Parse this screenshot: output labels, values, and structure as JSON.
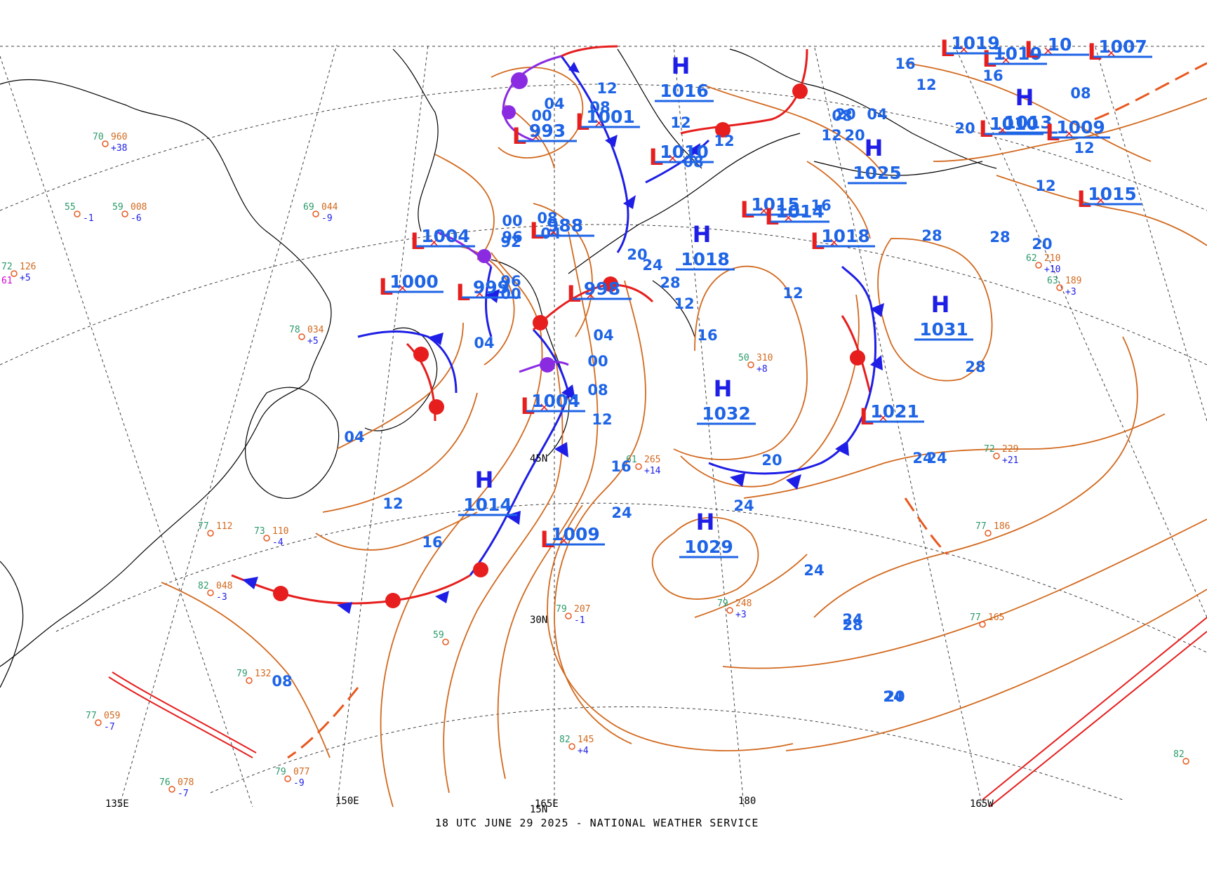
{
  "chart": {
    "footer": "18 UTC JUNE 29 2025 - NATIONAL WEATHER SERVICE",
    "colors": {
      "isobar": "#d2691e",
      "high": "#1e1ee6",
      "low": "#e61e1e",
      "label": "#1e64e6",
      "warm_front": "#e61e1e",
      "cold_front": "#1e1ee6",
      "occluded": "#8a2be2",
      "coast": "#000000",
      "grid": "#000000",
      "station_temp": "#d100d1",
      "station_dew": "#1a9a1a"
    },
    "grid_labels": [
      {
        "id": "135e",
        "text": "135E"
      },
      {
        "id": "150e",
        "text": "150E"
      },
      {
        "id": "165e",
        "text": "165E"
      },
      {
        "id": "180",
        "text": "180"
      },
      {
        "id": "165w",
        "text": "165W"
      },
      {
        "id": "30n",
        "text": "30N"
      },
      {
        "id": "45n",
        "text": "45N"
      },
      {
        "id": "15n",
        "text": "15N"
      }
    ],
    "centers": [
      {
        "id": "h1025",
        "type": "H",
        "pressure": "1025"
      },
      {
        "id": "h1031",
        "type": "H",
        "pressure": "1031"
      },
      {
        "id": "h1032",
        "type": "H",
        "pressure": "1032"
      },
      {
        "id": "h1029",
        "type": "H",
        "pressure": "1029"
      },
      {
        "id": "h1014",
        "type": "H",
        "pressure": "1014"
      },
      {
        "id": "h1016",
        "type": "H",
        "pressure": "1016"
      },
      {
        "id": "h1018a",
        "type": "H",
        "pressure": "1018"
      },
      {
        "id": "h1013",
        "type": "H",
        "pressure": "1013"
      },
      {
        "id": "l993",
        "type": "L",
        "pressure": "993"
      },
      {
        "id": "l1001",
        "type": "L",
        "pressure": "1001"
      },
      {
        "id": "l988",
        "type": "L",
        "pressure": "988"
      },
      {
        "id": "l1004a",
        "type": "L",
        "pressure": "1004"
      },
      {
        "id": "l1000",
        "type": "L",
        "pressure": "1000"
      },
      {
        "id": "l999",
        "type": "L",
        "pressure": "999"
      },
      {
        "id": "l998",
        "type": "L",
        "pressure": "998"
      },
      {
        "id": "l1004b",
        "type": "L",
        "pressure": "1004"
      },
      {
        "id": "l1009",
        "type": "L",
        "pressure": "1009"
      },
      {
        "id": "l1010a",
        "type": "L",
        "pressure": "1010"
      },
      {
        "id": "l1015a",
        "type": "L",
        "pressure": "1015"
      },
      {
        "id": "l1014",
        "type": "L",
        "pressure": "1014"
      },
      {
        "id": "l1018b",
        "type": "L",
        "pressure": "1018"
      },
      {
        "id": "l1021",
        "type": "L",
        "pressure": "1021"
      },
      {
        "id": "l1010b",
        "type": "L",
        "pressure": "1010"
      },
      {
        "id": "l1010c",
        "type": "L",
        "pressure": "1010"
      },
      {
        "id": "l1009b",
        "type": "L",
        "pressure": "1009"
      },
      {
        "id": "l1007",
        "type": "L",
        "pressure": "1007"
      },
      {
        "id": "l1015b",
        "type": "L",
        "pressure": "1015"
      },
      {
        "id": "l1019",
        "type": "L",
        "pressure": "1019"
      },
      {
        "id": "l10",
        "type": "L",
        "pressure": "10"
      }
    ],
    "isobar_labels": [
      {
        "id": "i1",
        "text": "12"
      },
      {
        "id": "i2",
        "text": "08"
      },
      {
        "id": "i3",
        "text": "04"
      },
      {
        "id": "i4",
        "text": "00"
      },
      {
        "id": "i5",
        "text": "12"
      },
      {
        "id": "i6",
        "text": "08"
      },
      {
        "id": "i7",
        "text": "04"
      },
      {
        "id": "i8",
        "text": "00"
      },
      {
        "id": "i9",
        "text": "96"
      },
      {
        "id": "i10",
        "text": "92"
      },
      {
        "id": "i11",
        "text": "96"
      },
      {
        "id": "i12",
        "text": "00"
      },
      {
        "id": "i13",
        "text": "04"
      },
      {
        "id": "i14",
        "text": "04"
      },
      {
        "id": "i15",
        "text": "00"
      },
      {
        "id": "i16",
        "text": "08"
      },
      {
        "id": "i17",
        "text": "12"
      },
      {
        "id": "i18",
        "text": "16"
      },
      {
        "id": "i19",
        "text": "20"
      },
      {
        "id": "i20",
        "text": "24"
      },
      {
        "id": "i21",
        "text": "28"
      },
      {
        "id": "i22",
        "text": "12"
      },
      {
        "id": "i23",
        "text": "16"
      },
      {
        "id": "i24",
        "text": "20"
      },
      {
        "id": "i25",
        "text": "24"
      },
      {
        "id": "i26",
        "text": "28"
      },
      {
        "id": "i27",
        "text": "28"
      },
      {
        "id": "i28",
        "text": "28"
      },
      {
        "id": "i29",
        "text": "24"
      },
      {
        "id": "i30",
        "text": "24"
      },
      {
        "id": "i31",
        "text": "20"
      },
      {
        "id": "i32",
        "text": "20"
      },
      {
        "id": "i33",
        "text": "24"
      },
      {
        "id": "i34",
        "text": "28"
      },
      {
        "id": "i35",
        "text": "24"
      },
      {
        "id": "i36",
        "text": "20"
      },
      {
        "id": "i37",
        "text": "16"
      },
      {
        "id": "i38",
        "text": "12"
      },
      {
        "id": "i39",
        "text": "16"
      },
      {
        "id": "i40",
        "text": "12"
      },
      {
        "id": "i41",
        "text": "20"
      },
      {
        "id": "i42",
        "text": "12"
      },
      {
        "id": "i43",
        "text": "08"
      },
      {
        "id": "i44",
        "text": "04"
      },
      {
        "id": "i45",
        "text": "08"
      },
      {
        "id": "i46",
        "text": "12"
      },
      {
        "id": "i47",
        "text": "12"
      },
      {
        "id": "i48",
        "text": "08"
      },
      {
        "id": "i49",
        "text": "12"
      },
      {
        "id": "i50",
        "text": "16"
      },
      {
        "id": "i51",
        "text": "20"
      },
      {
        "id": "i52",
        "text": "24"
      },
      {
        "id": "i53",
        "text": "12"
      },
      {
        "id": "i54",
        "text": "16"
      },
      {
        "id": "i55",
        "text": "04"
      },
      {
        "id": "i56",
        "text": "08"
      },
      {
        "id": "i57",
        "text": "24"
      }
    ],
    "stations": [
      {
        "id": "s1",
        "temp": "72",
        "dew": "61",
        "pres": "126",
        "tend": "+5"
      },
      {
        "id": "s2",
        "temp": "70",
        "dew": "",
        "pres": "960",
        "tend": "+38"
      },
      {
        "id": "s3",
        "temp": "55",
        "dew": "",
        "pres": "",
        "tend": "-1"
      },
      {
        "id": "s4",
        "temp": "59",
        "dew": "",
        "pres": "008",
        "tend": "-6"
      },
      {
        "id": "s5",
        "temp": "69",
        "dew": "",
        "pres": "044",
        "tend": "-9"
      },
      {
        "id": "s6",
        "temp": "78",
        "dew": "",
        "pres": "034",
        "tend": "+5"
      },
      {
        "id": "s7",
        "temp": "82",
        "dew": "",
        "pres": "048",
        "tend": "-3"
      },
      {
        "id": "s8",
        "temp": "79",
        "dew": "",
        "pres": "132",
        "tend": ""
      },
      {
        "id": "s9",
        "temp": "77",
        "dew": "",
        "pres": "059",
        "tend": "-7"
      },
      {
        "id": "s10",
        "temp": "79",
        "dew": "",
        "pres": "077",
        "tend": "-9"
      },
      {
        "id": "s11",
        "temp": "76",
        "dew": "",
        "pres": "078",
        "tend": "-7"
      },
      {
        "id": "s12",
        "temp": "82",
        "dew": "",
        "pres": "145",
        "tend": "+4"
      },
      {
        "id": "s13",
        "temp": "79",
        "dew": "",
        "pres": "207",
        "tend": "-1"
      },
      {
        "id": "s14",
        "temp": "79",
        "dew": "",
        "pres": "248",
        "tend": "+3"
      },
      {
        "id": "s15",
        "temp": "77",
        "dew": "",
        "pres": "165",
        "tend": ""
      },
      {
        "id": "s16",
        "temp": "77",
        "dew": "",
        "pres": "186",
        "tend": ""
      },
      {
        "id": "s17",
        "temp": "72",
        "dew": "",
        "pres": "229",
        "tend": "+21"
      },
      {
        "id": "s18",
        "temp": "63",
        "dew": "",
        "pres": "189",
        "tend": "+3"
      },
      {
        "id": "s19",
        "temp": "62",
        "dew": "",
        "pres": "210",
        "tend": "+10"
      },
      {
        "id": "s20",
        "temp": "50",
        "dew": "",
        "pres": "310",
        "tend": "+8"
      },
      {
        "id": "s21",
        "temp": "61",
        "dew": "",
        "pres": "265",
        "tend": "+14"
      },
      {
        "id": "s22",
        "temp": "73",
        "dew": "",
        "pres": "110",
        "tend": "-4"
      },
      {
        "id": "s23",
        "temp": "77",
        "dew": "",
        "pres": "112",
        "tend": ""
      },
      {
        "id": "s24",
        "temp": "82",
        "dew": "",
        "pres": "",
        "tend": ""
      },
      {
        "id": "s25",
        "temp": "59",
        "dew": "",
        "pres": "",
        "tend": ""
      }
    ]
  }
}
